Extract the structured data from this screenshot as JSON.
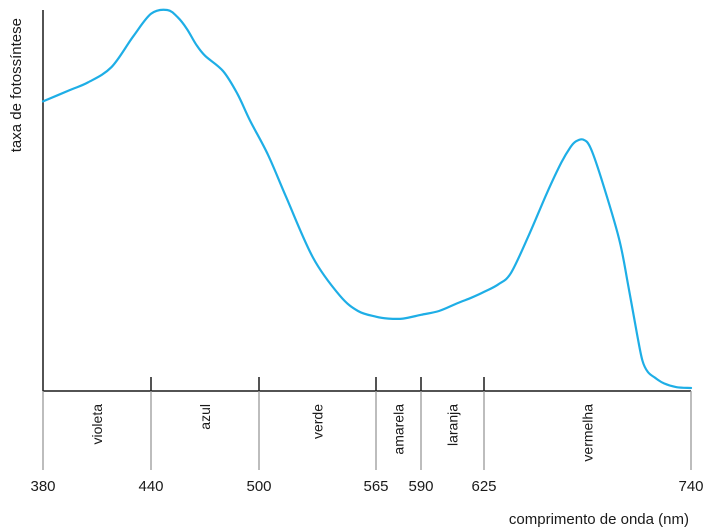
{
  "chart_data": {
    "type": "line",
    "xlabel": "comprimento de onda (nm)",
    "ylabel": "taxa de fotossíntese",
    "xlim": [
      380,
      740
    ],
    "ylim": [
      0,
      1
    ],
    "x_ticks": [
      380,
      440,
      500,
      565,
      590,
      625,
      740
    ],
    "x_tick_labels": [
      "380",
      "440",
      "500",
      "565",
      "590",
      "625",
      "740"
    ],
    "bands": [
      {
        "label": "violeta",
        "from": 380,
        "to": 440
      },
      {
        "label": "azul",
        "from": 440,
        "to": 500
      },
      {
        "label": "verde",
        "from": 500,
        "to": 565
      },
      {
        "label": "amarela",
        "from": 565,
        "to": 590
      },
      {
        "label": "laranja",
        "from": 590,
        "to": 625
      },
      {
        "label": "vermelha",
        "from": 625,
        "to": 740
      }
    ],
    "series": [
      {
        "color": "#1eaee6",
        "x": [
          380,
          395,
          405,
          418,
          430,
          440,
          449,
          455,
          460,
          465,
          470,
          480,
          488,
          495,
          505,
          515,
          530,
          545,
          555,
          565,
          572,
          580,
          590,
          600,
          610,
          618,
          625,
          633,
          640,
          650,
          660,
          668,
          673,
          676,
          680,
          684,
          690,
          700,
          705,
          710,
          713,
          716,
          720,
          725,
          732,
          740
        ],
        "y": [
          0.76,
          0.79,
          0.81,
          0.85,
          0.93,
          0.99,
          1.0,
          0.98,
          0.95,
          0.91,
          0.88,
          0.84,
          0.78,
          0.71,
          0.62,
          0.51,
          0.35,
          0.25,
          0.21,
          0.195,
          0.19,
          0.19,
          0.2,
          0.21,
          0.23,
          0.245,
          0.26,
          0.28,
          0.31,
          0.41,
          0.52,
          0.6,
          0.64,
          0.655,
          0.66,
          0.64,
          0.56,
          0.4,
          0.28,
          0.15,
          0.08,
          0.05,
          0.035,
          0.02,
          0.01,
          0.008
        ]
      }
    ]
  },
  "colors": {
    "curve": "#1eaee6",
    "axis": "#1a1a1a",
    "tick": "#999999"
  }
}
